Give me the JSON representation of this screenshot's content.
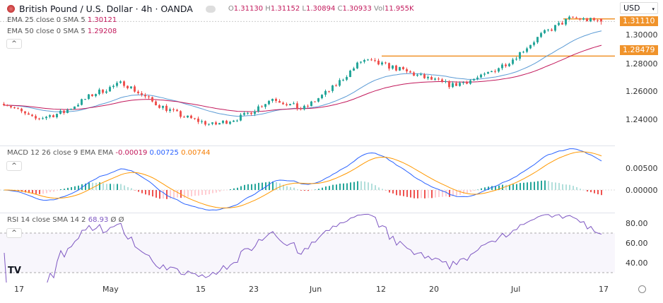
{
  "header": {
    "title": "British Pound / U.S. Dollar · 4h · OANDA",
    "ohlc": {
      "o_label": "O",
      "o": "1.31130",
      "h_label": "H",
      "h": "1.31152",
      "l_label": "L",
      "l": "1.30894",
      "c_label": "C",
      "c": "1.30933",
      "vol_label": "Vol",
      "vol": "11.955K"
    },
    "ema25": {
      "label": "EMA 25 close 0 SMA 5",
      "value": "1.30121"
    },
    "ema50": {
      "label": "EMA 50 close 0 SMA 5",
      "value": "1.29208"
    },
    "collapse_icon": "chevron-up-icon"
  },
  "price_axis": {
    "currency": "USD",
    "ticks": [
      "1.30000",
      "1.28000",
      "1.26000",
      "1.24000"
    ],
    "tick_values": [
      1.3,
      1.28,
      1.26,
      1.24
    ],
    "current_price_label": "1.31110",
    "level_label": "1.28479"
  },
  "macd": {
    "label": "MACD 12 26 close 9 EMA EMA",
    "hist": "-0.00019",
    "macd": "0.00725",
    "signal": "0.00744",
    "ticks": [
      "0.00500",
      "0.00000"
    ],
    "tick_values": [
      0.005,
      0
    ]
  },
  "rsi": {
    "label": "RSI 14 close SMA 14 2",
    "value": "68.93",
    "extra1": "Ø",
    "extra2": "Ø",
    "ticks": [
      "80.00",
      "60.00",
      "40.00"
    ],
    "tick_values": [
      80,
      60,
      40
    ]
  },
  "time_axis": {
    "labels": [
      "17",
      "May",
      "15",
      "23",
      "Jun",
      "12",
      "20",
      "Jul",
      "17"
    ]
  },
  "settings_icon": "gear-icon",
  "colors": {
    "up": "#26a69a",
    "down": "#ef5350",
    "ema25": "#5b9bd5",
    "ema50": "#c2185b",
    "level": "#f0932b",
    "macd": "#2962ff",
    "signal": "#ff9800",
    "rsi": "#7e57c2"
  },
  "chart_data": {
    "type": "candlestick",
    "symbol": "GBPUSD",
    "interval": "4h",
    "ylim": [
      1.228,
      1.318
    ],
    "horizontal_levels": [
      1.28479,
      1.3111
    ],
    "approx_close_path": [
      {
        "date": "Apr 17",
        "close": 1.252
      },
      {
        "date": "Apr 21",
        "close": 1.24
      },
      {
        "date": "Apr 28",
        "close": 1.245
      },
      {
        "date": "May 6",
        "close": 1.258
      },
      {
        "date": "May 11",
        "close": 1.266
      },
      {
        "date": "May 14",
        "close": 1.252
      },
      {
        "date": "May 18",
        "close": 1.242
      },
      {
        "date": "May 23",
        "close": 1.236
      },
      {
        "date": "May 27",
        "close": 1.242
      },
      {
        "date": "May 30",
        "close": 1.255
      },
      {
        "date": "Jun 3",
        "close": 1.247
      },
      {
        "date": "Jun 10",
        "close": 1.262
      },
      {
        "date": "Jun 16",
        "close": 1.282
      },
      {
        "date": "Jun 20",
        "close": 1.277
      },
      {
        "date": "Jun 25",
        "close": 1.27
      },
      {
        "date": "Jun 28",
        "close": 1.264
      },
      {
        "date": "Jul 3",
        "close": 1.27
      },
      {
        "date": "Jul 8",
        "close": 1.282
      },
      {
        "date": "Jul 12",
        "close": 1.3
      },
      {
        "date": "Jul 15",
        "close": 1.312
      },
      {
        "date": "Jul 16",
        "close": 1.309
      }
    ]
  }
}
